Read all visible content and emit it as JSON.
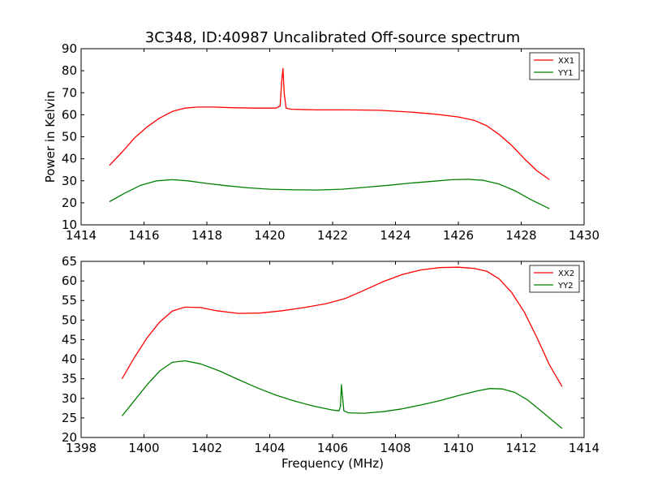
{
  "title": "3C348, ID:40987 Uncalibrated Off-source spectrum",
  "chart_data": [
    {
      "type": "line",
      "xlabel": "",
      "ylabel": "Power in Kelvin",
      "xlim": [
        1414,
        1430
      ],
      "ylim": [
        10,
        90
      ],
      "xticks": [
        1414,
        1416,
        1418,
        1420,
        1422,
        1424,
        1426,
        1428,
        1430
      ],
      "yticks": [
        10,
        20,
        30,
        40,
        50,
        60,
        70,
        80,
        90
      ],
      "legend_position": "top-right",
      "series": [
        {
          "name": "XX1",
          "color": "#ff0000",
          "x": [
            1414.9,
            1415.3,
            1415.7,
            1416.1,
            1416.5,
            1416.9,
            1417.3,
            1417.7,
            1418.2,
            1418.8,
            1419.5,
            1420.2,
            1420.33,
            1420.38,
            1420.42,
            1420.46,
            1420.52,
            1420.7,
            1421.5,
            1422.5,
            1423.5,
            1424.5,
            1425.3,
            1426.0,
            1426.5,
            1426.9,
            1427.3,
            1427.7,
            1428.1,
            1428.5,
            1428.9
          ],
          "y": [
            37,
            43,
            49.5,
            54.5,
            58.5,
            61.5,
            63,
            63.5,
            63.5,
            63.2,
            63,
            63,
            64,
            75,
            81,
            70,
            63,
            62.5,
            62.2,
            62.2,
            62,
            61.2,
            60.2,
            59,
            57.5,
            55,
            51,
            46,
            40,
            34.5,
            30.5
          ]
        },
        {
          "name": "YY1",
          "color": "#008000",
          "x": [
            1414.9,
            1415.4,
            1415.9,
            1416.4,
            1416.9,
            1417.4,
            1418.0,
            1418.6,
            1419.3,
            1420.0,
            1420.8,
            1421.5,
            1422.3,
            1423.0,
            1423.8,
            1424.5,
            1425.2,
            1425.8,
            1426.3,
            1426.8,
            1427.3,
            1427.8,
            1428.3,
            1428.9
          ],
          "y": [
            20.5,
            24.5,
            28,
            30,
            30.5,
            30,
            28.8,
            27.8,
            26.8,
            26.2,
            25.9,
            25.8,
            26.2,
            27,
            28,
            29,
            29.8,
            30.5,
            30.7,
            30.2,
            28.5,
            25.5,
            21.5,
            17.3
          ]
        }
      ]
    },
    {
      "type": "line",
      "xlabel": "Frequency (MHz)",
      "ylabel": "",
      "xlim": [
        1398,
        1414
      ],
      "ylim": [
        20,
        65
      ],
      "xticks": [
        1398,
        1400,
        1402,
        1404,
        1406,
        1408,
        1410,
        1412,
        1414
      ],
      "yticks": [
        20,
        25,
        30,
        35,
        40,
        45,
        50,
        55,
        60,
        65
      ],
      "legend_position": "top-right",
      "series": [
        {
          "name": "XX2",
          "color": "#ff0000",
          "x": [
            1399.3,
            1399.7,
            1400.1,
            1400.5,
            1400.9,
            1401.3,
            1401.8,
            1402.3,
            1403.0,
            1403.7,
            1404.4,
            1405.1,
            1405.8,
            1406.4,
            1407.0,
            1407.6,
            1408.2,
            1408.8,
            1409.4,
            1410.0,
            1410.5,
            1410.9,
            1411.3,
            1411.7,
            1412.1,
            1412.5,
            1412.9,
            1413.3
          ],
          "y": [
            35,
            40.5,
            45.5,
            49.5,
            52.3,
            53.3,
            53.2,
            52.4,
            51.7,
            51.8,
            52.4,
            53.2,
            54.2,
            55.5,
            57.6,
            59.8,
            61.6,
            62.8,
            63.4,
            63.5,
            63.2,
            62.5,
            60.5,
            57,
            52,
            45.5,
            38.5,
            33
          ]
        },
        {
          "name": "YY2",
          "color": "#008000",
          "x": [
            1399.3,
            1399.7,
            1400.1,
            1400.5,
            1400.9,
            1401.3,
            1401.8,
            1402.4,
            1403.0,
            1403.6,
            1404.2,
            1404.8,
            1405.4,
            1406.0,
            1406.2,
            1406.25,
            1406.28,
            1406.32,
            1406.36,
            1406.5,
            1407.0,
            1407.6,
            1408.2,
            1408.8,
            1409.4,
            1410.0,
            1410.6,
            1411.0,
            1411.4,
            1411.8,
            1412.2,
            1412.6,
            1413.0,
            1413.3
          ],
          "y": [
            25.5,
            29.5,
            33.5,
            37,
            39.2,
            39.6,
            38.8,
            37,
            34.8,
            32.7,
            30.8,
            29.3,
            28,
            27,
            26.8,
            28,
            33.5,
            30,
            26.8,
            26.3,
            26.2,
            26.6,
            27.3,
            28.3,
            29.4,
            30.7,
            31.9,
            32.5,
            32.4,
            31.5,
            29.6,
            27,
            24.3,
            22.3
          ]
        }
      ]
    }
  ]
}
